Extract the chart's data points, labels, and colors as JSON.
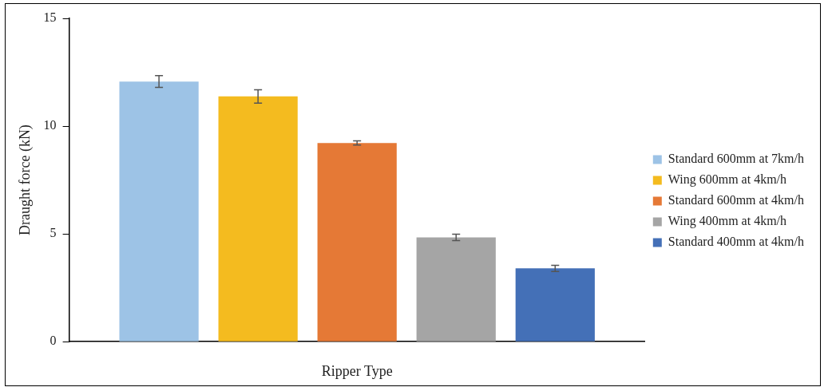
{
  "chart_data": {
    "type": "bar",
    "xlabel": "Ripper Type",
    "ylabel": "Draught force (kN)",
    "categories": [
      null
    ],
    "series": [
      {
        "name": "Standard 600mm at 7km/h",
        "color": "#9dc3e6",
        "values": [
          12.07
        ],
        "errors": [
          0.27
        ]
      },
      {
        "name": "Wing 600mm at 4km/h",
        "color": "#f4bb1f",
        "values": [
          11.38
        ],
        "errors": [
          0.31
        ]
      },
      {
        "name": "Standard 600mm at 4km/h",
        "color": "#e57936",
        "values": [
          9.22
        ],
        "errors": [
          0.1
        ]
      },
      {
        "name": "Wing 400mm at 4km/h",
        "color": "#a5a5a5",
        "values": [
          4.84
        ],
        "errors": [
          0.15
        ]
      },
      {
        "name": "Standard 400mm at 4km/h",
        "color": "#4470b7",
        "values": [
          3.4
        ],
        "errors": [
          0.14
        ]
      }
    ],
    "ylim": [
      0,
      15
    ],
    "yticks": [
      0,
      5,
      10,
      15
    ],
    "grid": false,
    "legend": "right"
  }
}
